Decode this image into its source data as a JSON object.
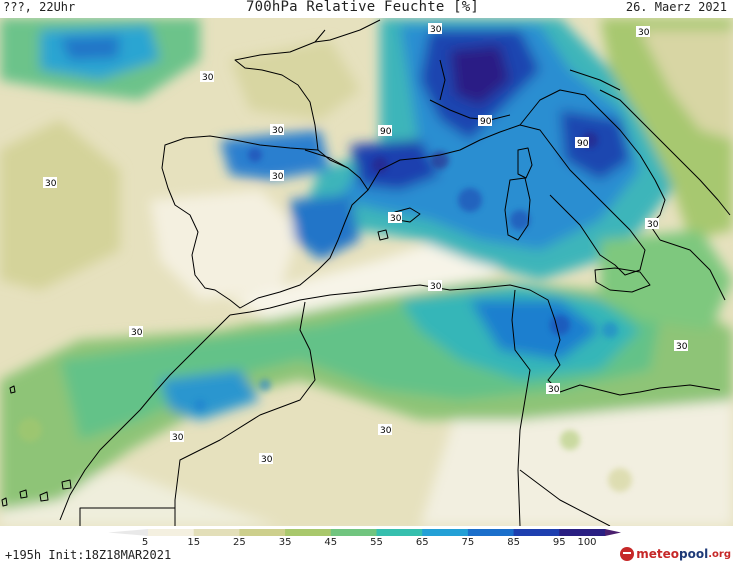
{
  "header": {
    "left": "???, 22Uhr",
    "title": "700hPa Relative Feuchte [%]",
    "date": "26. Maerz 2021"
  },
  "footer": {
    "init": "+195h  Init:18Z18MAR2021",
    "logo_part1": "meteo",
    "logo_part2": "pool",
    "logo_part3": ".org"
  },
  "legend": {
    "ticks": [
      "5",
      "15",
      "25",
      "35",
      "45",
      "55",
      "65",
      "75",
      "85",
      "95",
      "100"
    ],
    "colors": [
      "#ffffff",
      "#f4f0e0",
      "#e3dfb9",
      "#cdcf8c",
      "#a9c86c",
      "#71c57f",
      "#36bfae",
      "#23a0d6",
      "#1b6fcb",
      "#1e3faf",
      "#2a1f82"
    ]
  },
  "map_labels": {
    "c1": "30",
    "c2": "30",
    "c3": "30",
    "c4": "30",
    "c5": "30",
    "c6": "30",
    "c7": "30",
    "c8": "30",
    "c9": "30",
    "c10": "30",
    "c11": "30",
    "c12": "30",
    "c13": "30",
    "c14": "30",
    "c15": "30",
    "h1": "90",
    "h2": "90",
    "h3": "90"
  }
}
